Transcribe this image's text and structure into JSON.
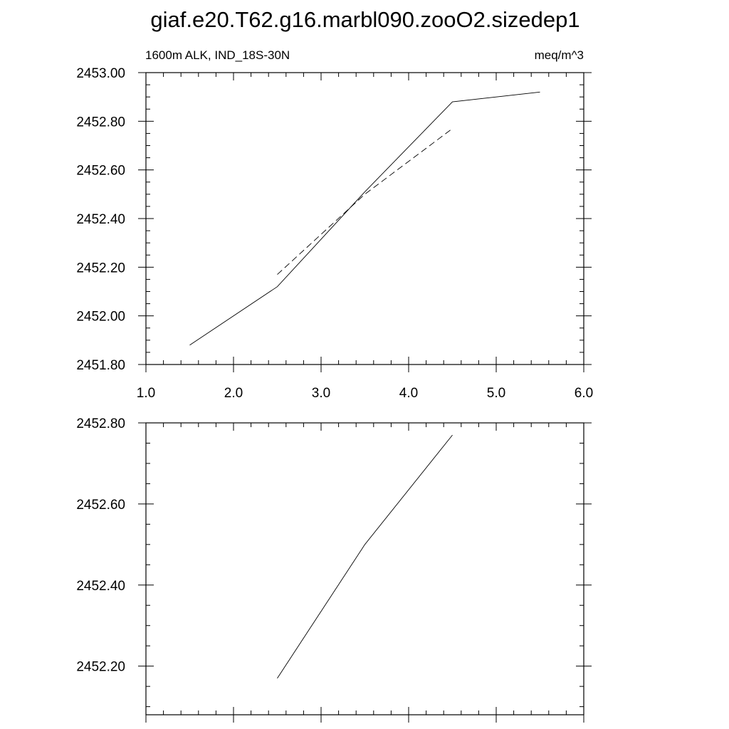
{
  "title": "giaf.e20.T62.g16.marbl090.zooO2.sizedep1",
  "chart_data": [
    {
      "type": "line",
      "subtitle_left": "1600m ALK, IND_18S-30N",
      "subtitle_right": "meq/m^3",
      "xlim": [
        1.0,
        6.0
      ],
      "ylim": [
        2451.8,
        2453.0
      ],
      "x_ticks": [
        1.0,
        2.0,
        3.0,
        4.0,
        5.0,
        6.0
      ],
      "x_tick_labels": [
        "1.0",
        "2.0",
        "3.0",
        "4.0",
        "5.0",
        "6.0"
      ],
      "y_ticks": [
        2451.8,
        2452.0,
        2452.2,
        2452.4,
        2452.6,
        2452.8,
        2453.0
      ],
      "y_tick_labels": [
        "2451.80",
        "2452.00",
        "2452.20",
        "2452.40",
        "2452.60",
        "2452.80",
        "2453.00"
      ],
      "series": [
        {
          "style": "solid",
          "x": [
            1.5,
            2.5,
            3.5,
            4.5,
            5.5
          ],
          "y": [
            2451.88,
            2452.12,
            2452.51,
            2452.88,
            2452.92
          ]
        },
        {
          "style": "dashed",
          "x": [
            2.5,
            3.5,
            4.5
          ],
          "y": [
            2452.17,
            2452.5,
            2452.77
          ]
        }
      ]
    },
    {
      "type": "line",
      "xlim": [
        1.0,
        6.0
      ],
      "ylim": [
        2452.08,
        2452.8
      ],
      "x_ticks": [
        1.0,
        2.0,
        3.0,
        4.0,
        5.0,
        6.0
      ],
      "x_tick_labels": [],
      "y_ticks": [
        2452.2,
        2452.4,
        2452.6,
        2452.8
      ],
      "y_tick_labels": [
        "2452.20",
        "2452.40",
        "2452.60",
        "2452.80"
      ],
      "series": [
        {
          "style": "solid",
          "x": [
            2.5,
            3.5,
            4.5
          ],
          "y": [
            2452.17,
            2452.5,
            2452.77
          ]
        }
      ]
    }
  ]
}
